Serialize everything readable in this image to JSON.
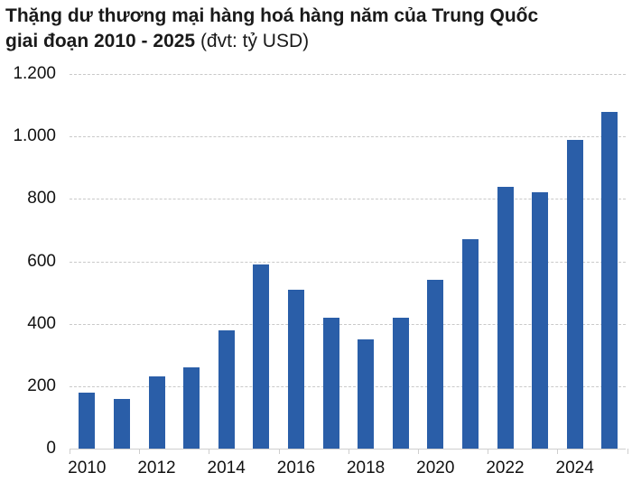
{
  "title": {
    "line1": "Thặng dư thương mại hàng hoá hàng năm của Trung Quốc",
    "line2_bold": "giai đoạn 2010 - 2025",
    "line2_unit": " (đvt: tỷ USD)"
  },
  "colors": {
    "bar": "#2a5ea8",
    "grid": "#c9c9c9",
    "axis": "#cfcfcf"
  },
  "chart_data": {
    "type": "bar",
    "title": "Thặng dư thương mại hàng hoá hàng năm của Trung Quốc giai đoạn 2010 - 2025 (đvt: tỷ USD)",
    "xlabel": "",
    "ylabel": "tỷ USD",
    "categories": [
      "2010",
      "2011",
      "2012",
      "2013",
      "2014",
      "2015",
      "2016",
      "2017",
      "2018",
      "2019",
      "2020",
      "2021",
      "2022",
      "2023",
      "2024",
      "2025"
    ],
    "values": [
      180,
      160,
      230,
      260,
      380,
      590,
      510,
      420,
      350,
      420,
      540,
      670,
      840,
      820,
      990,
      1080
    ],
    "ylim": [
      0,
      1200
    ],
    "yticks": [
      0,
      200,
      400,
      600,
      800,
      1000,
      1200
    ],
    "ytick_labels": [
      "0",
      "200",
      "400",
      "600",
      "800",
      "1.000",
      "1.200"
    ],
    "xtick_labels": [
      "2010",
      "2012",
      "2014",
      "2016",
      "2018",
      "2020",
      "2022",
      "2024"
    ],
    "grid": true,
    "legend": "none"
  }
}
